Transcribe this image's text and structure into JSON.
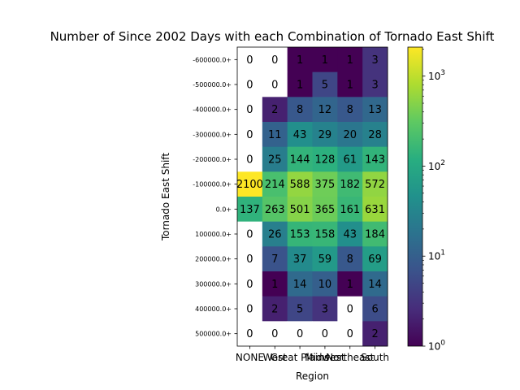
{
  "chart_data": {
    "type": "heatmap",
    "title": "Number of Since 2002 Days with each Combination of Tornado East Shift",
    "xlabel": "Region",
    "ylabel": "Tornado East Shift",
    "x_categories": [
      "NONE",
      "West",
      "Great Plains",
      "Midwest",
      "Northeast",
      "South"
    ],
    "y_categories": [
      "-600000.0+",
      "-500000.0+",
      "-400000.0+",
      "-300000.0+",
      "-200000.0+",
      "-100000.0+",
      "0.0+",
      "100000.0+",
      "200000.0+",
      "300000.0+",
      "400000.0+",
      "500000.0+"
    ],
    "values": [
      [
        0,
        0,
        1,
        1,
        1,
        3
      ],
      [
        0,
        0,
        1,
        5,
        1,
        3
      ],
      [
        0,
        2,
        8,
        12,
        8,
        13
      ],
      [
        0,
        11,
        43,
        29,
        20,
        28
      ],
      [
        0,
        25,
        144,
        128,
        61,
        143
      ],
      [
        2100,
        214,
        588,
        375,
        182,
        572
      ],
      [
        137,
        263,
        501,
        365,
        161,
        631
      ],
      [
        0,
        26,
        153,
        158,
        43,
        184
      ],
      [
        0,
        7,
        37,
        59,
        8,
        69
      ],
      [
        0,
        1,
        14,
        10,
        1,
        14
      ],
      [
        0,
        2,
        5,
        3,
        0,
        6
      ],
      [
        0,
        0,
        0,
        0,
        0,
        2
      ]
    ],
    "colorbar": {
      "scale": "log",
      "colormap": "viridis",
      "range": [
        1,
        2100
      ],
      "ticks": [
        {
          "value": 1,
          "base": "10",
          "exp": "0"
        },
        {
          "value": 10,
          "base": "10",
          "exp": "1"
        },
        {
          "value": 100,
          "base": "10",
          "exp": "2"
        },
        {
          "value": 1000,
          "base": "10",
          "exp": "3"
        }
      ]
    },
    "colors": {
      "zero_cell": "#ffffff",
      "text": "#000000",
      "axis": "#000000"
    }
  }
}
